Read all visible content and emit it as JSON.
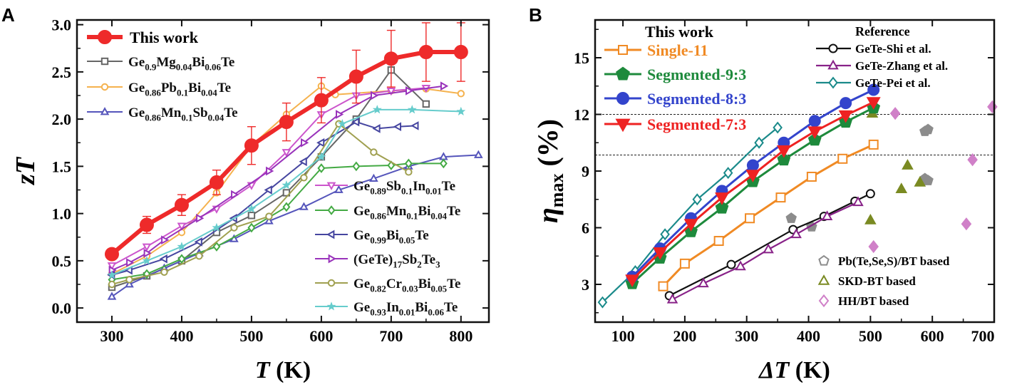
{
  "panels": [
    {
      "label": "A",
      "chart_data": {
        "type": "line",
        "xlabel": "T (K)",
        "xlabel_main": "T",
        "xlabel_unit": " (K)",
        "ylabel": "zT",
        "xlim": [
          250,
          840
        ],
        "ylim": [
          -0.15,
          3.05
        ],
        "xticks": [
          300,
          400,
          500,
          600,
          700,
          800
        ],
        "yticks": [
          0.0,
          0.5,
          1.0,
          1.5,
          2.0,
          2.5,
          3.0
        ],
        "ytick_labels": [
          "0.0",
          "0.5",
          "1.0",
          "1.5",
          "2.0",
          "2.5",
          "3.0"
        ],
        "grid": false,
        "series": [
          {
            "name": "This work",
            "color": "#ee2a2a",
            "marker": "circle-filled",
            "width": 6,
            "x": [
              300,
              350,
              400,
              450,
              500,
              550,
              600,
              650,
              700,
              750,
              800
            ],
            "y": [
              0.57,
              0.88,
              1.09,
              1.33,
              1.72,
              1.97,
              2.2,
              2.45,
              2.64,
              2.71,
              2.71
            ],
            "err": [
              0.05,
              0.09,
              0.11,
              0.13,
              0.2,
              0.2,
              0.24,
              0.28,
              0.3,
              0.31,
              0.31
            ]
          },
          {
            "name": "Ge0.9Mg0.04Bi0.06Te",
            "color": "#666666",
            "marker": "square",
            "x": [
              300,
              350,
              400,
              450,
              500,
              550,
              600,
              650,
              700,
              750
            ],
            "y": [
              0.22,
              0.34,
              0.5,
              0.8,
              0.98,
              1.22,
              1.6,
              2.0,
              2.52,
              2.16
            ]
          },
          {
            "name": "Ge0.86Pb0.1Bi0.04Te",
            "color": "#f5b24e",
            "marker": "circle",
            "x": [
              300,
              350,
              400,
              450,
              500,
              550,
              600,
              620,
              700,
              750,
              800
            ],
            "y": [
              0.36,
              0.55,
              0.8,
              1.22,
              1.72,
              2.05,
              2.35,
              2.26,
              2.3,
              2.32,
              2.27
            ]
          },
          {
            "name": "Ge0.86Mn0.1Sb0.04Te",
            "color": "#5555bb",
            "marker": "triangle-up",
            "x": [
              300,
              325,
              375,
              425,
              475,
              525,
              575,
              625,
              675,
              725,
              775,
              825
            ],
            "y": [
              0.12,
              0.25,
              0.42,
              0.58,
              0.73,
              0.92,
              1.07,
              1.25,
              1.37,
              1.5,
              1.6,
              1.62
            ]
          },
          {
            "name": "Ge0.89Sb0.1In0.01Te",
            "color": "#cc55cc",
            "marker": "triangle-down",
            "x": [
              300,
              350,
              400,
              450,
              500,
              550,
              600,
              650,
              700,
              750
            ],
            "y": [
              0.45,
              0.65,
              0.87,
              1.05,
              1.3,
              1.65,
              2.05,
              2.25,
              2.3,
              2.33
            ]
          },
          {
            "name": "Ge0.86Mn0.1Bi0.04Te",
            "color": "#44aa44",
            "marker": "diamond",
            "x": [
              300,
              350,
              400,
              450,
              500,
              550,
              600,
              650,
              700,
              725,
              775
            ],
            "y": [
              0.3,
              0.36,
              0.52,
              0.65,
              0.85,
              1.07,
              1.48,
              1.5,
              1.51,
              1.53,
              1.53
            ]
          },
          {
            "name": "Ge0.99Bi0.05Te",
            "color": "#4646a0",
            "marker": "triangle-left",
            "x": [
              300,
              325,
              375,
              425,
              475,
              525,
              575,
              600,
              650,
              680,
              710,
              735
            ],
            "y": [
              0.35,
              0.4,
              0.52,
              0.7,
              0.95,
              1.25,
              1.55,
              1.75,
              1.97,
              1.9,
              1.92,
              1.93
            ]
          },
          {
            "name": "(GeTe)17Sb2Te3",
            "color": "#9933bb",
            "marker": "triangle-right",
            "x": [
              300,
              325,
              350,
              375,
              425,
              475,
              525,
              575,
              625,
              675,
              725,
              775
            ],
            "y": [
              0.4,
              0.48,
              0.58,
              0.72,
              0.95,
              1.2,
              1.45,
              1.75,
              2.05,
              2.25,
              2.3,
              2.35
            ]
          },
          {
            "name": "Ge0.82Cr0.03Bi0.05Te",
            "color": "#a0a050",
            "marker": "circle",
            "x": [
              300,
              325,
              375,
              425,
              475,
              525,
              575,
              625,
              675,
              725
            ],
            "y": [
              0.25,
              0.3,
              0.38,
              0.55,
              0.85,
              0.97,
              1.38,
              1.95,
              1.65,
              1.44
            ]
          },
          {
            "name": "Ge0.93In0.01Bi0.06Te",
            "color": "#66cccc",
            "marker": "star",
            "x": [
              300,
              350,
              400,
              450,
              500,
              550,
              600,
              630,
              680,
              730,
              800
            ],
            "y": [
              0.35,
              0.5,
              0.65,
              0.85,
              1.05,
              1.3,
              1.6,
              1.95,
              2.1,
              2.1,
              2.08
            ]
          }
        ],
        "legend_placement": "top-left and center-right"
      }
    },
    {
      "label": "B",
      "chart_data": {
        "type": "line",
        "xlabel": "ΔT (K)",
        "xlabel_main": "ΔT",
        "xlabel_unit": " (K)",
        "ylabel": "ηmax (%)",
        "ylabel_main": "η",
        "ylabel_sub": "max",
        "ylabel_unit": " (%)",
        "xlim": [
          55,
          700
        ],
        "ylim": [
          1.0,
          17.0
        ],
        "xticks": [
          100,
          200,
          300,
          400,
          500,
          600,
          700
        ],
        "yticks": [
          3,
          6,
          9,
          12,
          15
        ],
        "hlines": [
          12.0,
          9.85
        ],
        "grid": false,
        "legend_titles": [
          "This work",
          "Reference"
        ],
        "series": [
          {
            "name": "Single-11",
            "group": "This work",
            "color": "#f08a24",
            "marker": "square",
            "x": [
              165,
              200,
              255,
              305,
              355,
              405,
              455,
              505
            ],
            "y": [
              2.9,
              4.1,
              5.3,
              6.5,
              7.6,
              8.7,
              9.65,
              10.4
            ]
          },
          {
            "name": "Segmented-9:3",
            "group": "This work",
            "color": "#1e8a3c",
            "marker": "pentagon-filled",
            "x": [
              115,
              160,
              210,
              260,
              310,
              360,
              410,
              460,
              505
            ],
            "y": [
              3.05,
              4.4,
              5.8,
              7.05,
              8.45,
              9.6,
              10.65,
              11.6,
              12.35
            ]
          },
          {
            "name": "Segmented-8:3",
            "group": "This work",
            "color": "#3344cc",
            "marker": "circle-filled",
            "x": [
              115,
              160,
              210,
              260,
              310,
              360,
              410,
              460,
              505
            ],
            "y": [
              3.4,
              4.9,
              6.5,
              7.95,
              9.3,
              10.5,
              11.65,
              12.6,
              13.3
            ]
          },
          {
            "name": "Segmented-7:3",
            "group": "This work",
            "color": "#ee2222",
            "marker": "triangle-down-filled",
            "x": [
              115,
              160,
              210,
              260,
              310,
              360,
              410,
              460,
              505
            ],
            "y": [
              3.25,
              4.7,
              6.2,
              7.6,
              8.8,
              10.1,
              11.1,
              11.95,
              12.65
            ]
          },
          {
            "name": "GeTe-Shi et al.",
            "group": "Reference",
            "color": "#111111",
            "marker": "circle",
            "x": [
              175,
              275,
              375,
              425,
              475,
              500
            ],
            "y": [
              2.4,
              4.05,
              5.9,
              6.6,
              7.4,
              7.8
            ]
          },
          {
            "name": "GeTe-Zhang et al.",
            "group": "Reference",
            "color": "#882288",
            "marker": "triangle-up",
            "x": [
              180,
              230,
              290,
              335,
              380,
              430,
              480
            ],
            "y": [
              2.2,
              3.05,
              3.95,
              4.85,
              5.65,
              6.6,
              7.35
            ]
          },
          {
            "name": "GeTe-Pei et al.",
            "group": "Reference",
            "color": "#1a8a8a",
            "marker": "diamond",
            "x": [
              67,
              120,
              168,
              220,
              270,
              320,
              350
            ],
            "y": [
              2.05,
              3.7,
              5.65,
              7.5,
              8.9,
              10.5,
              11.3
            ]
          }
        ],
        "scatter_groups": [
          {
            "name": "Pb(Te,Se,S)/BT based",
            "color": "#8c8c8c",
            "marker": "pentagon",
            "points": [
              [
                372,
                6.5
              ],
              [
                405,
                6.05
              ],
              [
                588,
                11.1
              ],
              [
                593,
                11.2
              ],
              [
                588,
                8.6
              ],
              [
                593,
                8.5
              ]
            ]
          },
          {
            "name": "SKD-BT based",
            "color": "#7a8a22",
            "marker": "triangle",
            "points": [
              [
                500,
                6.4
              ],
              [
                550,
                8.05
              ],
              [
                560,
                9.3
              ],
              [
                580,
                8.4
              ],
              [
                503,
                12.05
              ]
            ]
          },
          {
            "name": "HH/BT based",
            "color": "#d080c8",
            "marker": "diamond",
            "points": [
              [
                505,
                5.0
              ],
              [
                540,
                12.05
              ],
              [
                655,
                6.2
              ],
              [
                665,
                9.6
              ],
              [
                697,
                12.4
              ]
            ]
          }
        ],
        "scatter_legend_placement": "bottom-right"
      }
    }
  ]
}
